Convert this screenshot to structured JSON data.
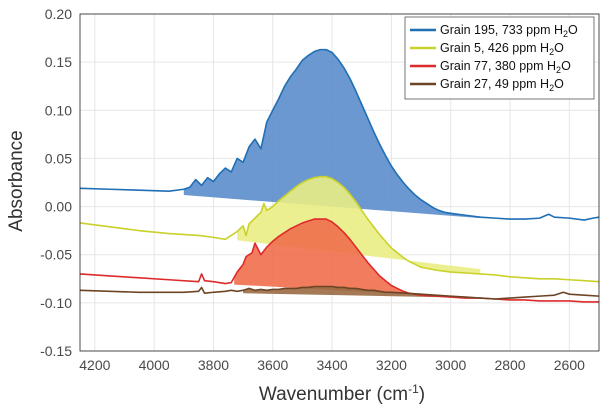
{
  "chart_data": {
    "type": "line",
    "xlabel": "Wavenumber (cm",
    "xlabel_sup": "-1",
    "xlabel_end": ")",
    "ylabel": "Absorbance",
    "xlim": [
      4250,
      2500
    ],
    "x_reversed": true,
    "ylim": [
      -0.15,
      0.2
    ],
    "grid": true,
    "legend_position": "top-right",
    "x_ticks": [
      4200,
      4000,
      3800,
      3600,
      3400,
      3200,
      3000,
      2800,
      2600
    ],
    "y_ticks": [
      -0.15,
      -0.1,
      -0.05,
      0.0,
      0.05,
      0.1,
      0.15,
      0.2
    ],
    "x_tick_labels": [
      "4200",
      "4000",
      "3800",
      "3600",
      "3400",
      "3200",
      "3000",
      "2800",
      "2600"
    ],
    "y_tick_labels": [
      "-0.15",
      "-0.10",
      "-0.05",
      "0.00",
      "0.05",
      "0.10",
      "0.15",
      "0.20"
    ],
    "series": [
      {
        "name": "Grain 195, 733 ppm H",
        "legend_sub": "2",
        "legend_end": "O",
        "color": "#1f6fb5",
        "fill": "#5b8dcc",
        "baseline": [
          [
            3900,
            0.012
          ],
          [
            2900,
            -0.012
          ]
        ],
        "points": [
          [
            4250,
            0.019
          ],
          [
            4150,
            0.018
          ],
          [
            4050,
            0.017
          ],
          [
            3950,
            0.016
          ],
          [
            3900,
            0.018
          ],
          [
            3880,
            0.02
          ],
          [
            3860,
            0.028
          ],
          [
            3840,
            0.022
          ],
          [
            3820,
            0.03
          ],
          [
            3800,
            0.026
          ],
          [
            3780,
            0.034
          ],
          [
            3760,
            0.04
          ],
          [
            3740,
            0.036
          ],
          [
            3720,
            0.05
          ],
          [
            3700,
            0.046
          ],
          [
            3680,
            0.062
          ],
          [
            3660,
            0.07
          ],
          [
            3640,
            0.06
          ],
          [
            3620,
            0.088
          ],
          [
            3600,
            0.1
          ],
          [
            3580,
            0.112
          ],
          [
            3560,
            0.125
          ],
          [
            3540,
            0.135
          ],
          [
            3520,
            0.143
          ],
          [
            3500,
            0.152
          ],
          [
            3480,
            0.157
          ],
          [
            3460,
            0.161
          ],
          [
            3440,
            0.163
          ],
          [
            3420,
            0.163
          ],
          [
            3400,
            0.16
          ],
          [
            3380,
            0.153
          ],
          [
            3360,
            0.144
          ],
          [
            3340,
            0.133
          ],
          [
            3320,
            0.12
          ],
          [
            3300,
            0.106
          ],
          [
            3280,
            0.092
          ],
          [
            3260,
            0.078
          ],
          [
            3240,
            0.065
          ],
          [
            3220,
            0.053
          ],
          [
            3200,
            0.042
          ],
          [
            3180,
            0.033
          ],
          [
            3160,
            0.025
          ],
          [
            3140,
            0.018
          ],
          [
            3120,
            0.012
          ],
          [
            3100,
            0.007
          ],
          [
            3080,
            0.003
          ],
          [
            3060,
            -0.001
          ],
          [
            3040,
            -0.004
          ],
          [
            3020,
            -0.006
          ],
          [
            3000,
            -0.007
          ],
          [
            2950,
            -0.009
          ],
          [
            2900,
            -0.011
          ],
          [
            2850,
            -0.012
          ],
          [
            2800,
            -0.013
          ],
          [
            2750,
            -0.013
          ],
          [
            2700,
            -0.012
          ],
          [
            2670,
            -0.008
          ],
          [
            2650,
            -0.011
          ],
          [
            2600,
            -0.012
          ],
          [
            2550,
            -0.014
          ],
          [
            2520,
            -0.012
          ],
          [
            2500,
            -0.011
          ]
        ]
      },
      {
        "name": "Grain 5, 426 ppm H",
        "legend_sub": "2",
        "legend_end": "O",
        "color": "#c9d12a",
        "fill": "#eaed84",
        "baseline": [
          [
            3720,
            -0.035
          ],
          [
            2900,
            -0.065
          ]
        ],
        "points": [
          [
            4250,
            -0.017
          ],
          [
            4150,
            -0.021
          ],
          [
            4050,
            -0.025
          ],
          [
            3950,
            -0.028
          ],
          [
            3850,
            -0.03
          ],
          [
            3800,
            -0.032
          ],
          [
            3760,
            -0.034
          ],
          [
            3740,
            -0.03
          ],
          [
            3720,
            -0.026
          ],
          [
            3700,
            -0.02
          ],
          [
            3690,
            -0.03
          ],
          [
            3680,
            -0.018
          ],
          [
            3660,
            -0.012
          ],
          [
            3640,
            -0.006
          ],
          [
            3630,
            0.003
          ],
          [
            3620,
            -0.004
          ],
          [
            3600,
            0.0
          ],
          [
            3580,
            0.006
          ],
          [
            3560,
            0.011
          ],
          [
            3540,
            0.016
          ],
          [
            3520,
            0.021
          ],
          [
            3500,
            0.025
          ],
          [
            3480,
            0.028
          ],
          [
            3460,
            0.03
          ],
          [
            3440,
            0.031
          ],
          [
            3420,
            0.031
          ],
          [
            3400,
            0.029
          ],
          [
            3380,
            0.025
          ],
          [
            3360,
            0.02
          ],
          [
            3340,
            0.013
          ],
          [
            3320,
            0.005
          ],
          [
            3300,
            -0.004
          ],
          [
            3280,
            -0.013
          ],
          [
            3260,
            -0.021
          ],
          [
            3240,
            -0.029
          ],
          [
            3220,
            -0.036
          ],
          [
            3200,
            -0.043
          ],
          [
            3180,
            -0.048
          ],
          [
            3160,
            -0.053
          ],
          [
            3140,
            -0.057
          ],
          [
            3120,
            -0.06
          ],
          [
            3100,
            -0.063
          ],
          [
            3050,
            -0.066
          ],
          [
            3000,
            -0.068
          ],
          [
            2950,
            -0.069
          ],
          [
            2900,
            -0.07
          ],
          [
            2850,
            -0.071
          ],
          [
            2800,
            -0.073
          ],
          [
            2750,
            -0.074
          ],
          [
            2700,
            -0.075
          ],
          [
            2650,
            -0.075
          ],
          [
            2600,
            -0.076
          ],
          [
            2550,
            -0.077
          ],
          [
            2500,
            -0.078
          ]
        ]
      },
      {
        "name": "Grain 77, 380 ppm H",
        "legend_sub": "2",
        "legend_end": "O",
        "color": "#dd2b2b",
        "fill": "#f06e4d",
        "baseline": [
          [
            3730,
            -0.081
          ],
          [
            2900,
            -0.095
          ]
        ],
        "points": [
          [
            4250,
            -0.07
          ],
          [
            4150,
            -0.072
          ],
          [
            4050,
            -0.074
          ],
          [
            3950,
            -0.076
          ],
          [
            3850,
            -0.078
          ],
          [
            3840,
            -0.07
          ],
          [
            3830,
            -0.077
          ],
          [
            3800,
            -0.078
          ],
          [
            3760,
            -0.08
          ],
          [
            3740,
            -0.079
          ],
          [
            3720,
            -0.068
          ],
          [
            3700,
            -0.06
          ],
          [
            3690,
            -0.052
          ],
          [
            3670,
            -0.048
          ],
          [
            3660,
            -0.038
          ],
          [
            3640,
            -0.05
          ],
          [
            3620,
            -0.042
          ],
          [
            3600,
            -0.036
          ],
          [
            3580,
            -0.031
          ],
          [
            3560,
            -0.027
          ],
          [
            3540,
            -0.023
          ],
          [
            3520,
            -0.02
          ],
          [
            3500,
            -0.017
          ],
          [
            3480,
            -0.015
          ],
          [
            3460,
            -0.013
          ],
          [
            3440,
            -0.013
          ],
          [
            3420,
            -0.013
          ],
          [
            3400,
            -0.016
          ],
          [
            3380,
            -0.021
          ],
          [
            3360,
            -0.027
          ],
          [
            3340,
            -0.034
          ],
          [
            3320,
            -0.042
          ],
          [
            3300,
            -0.05
          ],
          [
            3280,
            -0.058
          ],
          [
            3260,
            -0.065
          ],
          [
            3240,
            -0.072
          ],
          [
            3220,
            -0.077
          ],
          [
            3200,
            -0.082
          ],
          [
            3180,
            -0.085
          ],
          [
            3160,
            -0.088
          ],
          [
            3140,
            -0.09
          ],
          [
            3100,
            -0.092
          ],
          [
            3050,
            -0.093
          ],
          [
            3000,
            -0.094
          ],
          [
            2950,
            -0.095
          ],
          [
            2900,
            -0.095
          ],
          [
            2850,
            -0.096
          ],
          [
            2800,
            -0.097
          ],
          [
            2750,
            -0.097
          ],
          [
            2700,
            -0.098
          ],
          [
            2650,
            -0.098
          ],
          [
            2600,
            -0.098
          ],
          [
            2550,
            -0.099
          ],
          [
            2500,
            -0.099
          ]
        ]
      },
      {
        "name": "Grain 27, 49 ppm H",
        "legend_sub": "2",
        "legend_end": "O",
        "color": "#6b4526",
        "fill": "#9a6a43",
        "baseline": [
          [
            3700,
            -0.09
          ],
          [
            2900,
            -0.095
          ]
        ],
        "points": [
          [
            4250,
            -0.087
          ],
          [
            4150,
            -0.088
          ],
          [
            4050,
            -0.089
          ],
          [
            3950,
            -0.089
          ],
          [
            3900,
            -0.089
          ],
          [
            3850,
            -0.088
          ],
          [
            3840,
            -0.084
          ],
          [
            3830,
            -0.09
          ],
          [
            3800,
            -0.089
          ],
          [
            3760,
            -0.088
          ],
          [
            3740,
            -0.087
          ],
          [
            3720,
            -0.088
          ],
          [
            3700,
            -0.087
          ],
          [
            3680,
            -0.085
          ],
          [
            3660,
            -0.087
          ],
          [
            3640,
            -0.086
          ],
          [
            3620,
            -0.087
          ],
          [
            3600,
            -0.086
          ],
          [
            3580,
            -0.086
          ],
          [
            3560,
            -0.085
          ],
          [
            3540,
            -0.085
          ],
          [
            3520,
            -0.085
          ],
          [
            3500,
            -0.084
          ],
          [
            3480,
            -0.084
          ],
          [
            3460,
            -0.083
          ],
          [
            3440,
            -0.083
          ],
          [
            3420,
            -0.083
          ],
          [
            3400,
            -0.083
          ],
          [
            3380,
            -0.084
          ],
          [
            3360,
            -0.084
          ],
          [
            3340,
            -0.085
          ],
          [
            3320,
            -0.085
          ],
          [
            3300,
            -0.086
          ],
          [
            3280,
            -0.087
          ],
          [
            3260,
            -0.087
          ],
          [
            3240,
            -0.088
          ],
          [
            3220,
            -0.089
          ],
          [
            3200,
            -0.089
          ],
          [
            3150,
            -0.09
          ],
          [
            3100,
            -0.091
          ],
          [
            3050,
            -0.092
          ],
          [
            3000,
            -0.093
          ],
          [
            2950,
            -0.094
          ],
          [
            2900,
            -0.095
          ],
          [
            2850,
            -0.096
          ],
          [
            2800,
            -0.095
          ],
          [
            2750,
            -0.094
          ],
          [
            2700,
            -0.093
          ],
          [
            2650,
            -0.092
          ],
          [
            2620,
            -0.089
          ],
          [
            2600,
            -0.091
          ],
          [
            2550,
            -0.092
          ],
          [
            2500,
            -0.093
          ]
        ]
      }
    ]
  }
}
